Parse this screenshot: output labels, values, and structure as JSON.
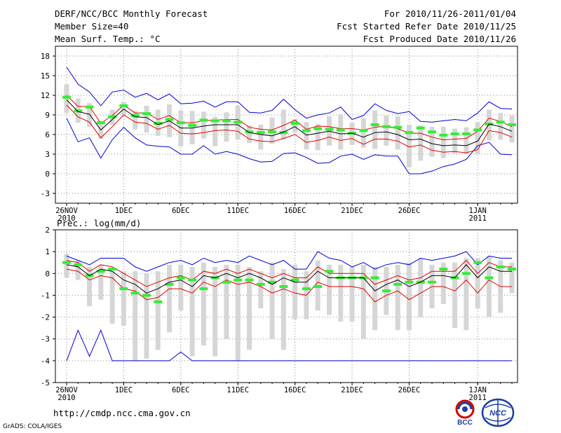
{
  "header": {
    "title": "DERF/NCC/BCC Monthly Forecast",
    "member_size": "Member Size=40",
    "variable": "Mean Surf. Temp.: °C",
    "period": "For 2010/11/26-2011/01/04",
    "started": "Fcst Started Refer Date 2010/11/25",
    "produced": "Fcst Produced Date 2010/11/26"
  },
  "footer": {
    "url": "http://cmdp.ncc.cma.gov.cn",
    "grads": "GrADS: COLA/IGES",
    "logo1_text": "BCC",
    "logo2_text": "NCC"
  },
  "colors": {
    "mean": "#000000",
    "std_band": "#e00000",
    "extreme": "#0000d0",
    "obs_box": "#33ee33",
    "spread_bar": "#d6d6d6",
    "grid": "#888888"
  },
  "chart_data": [
    {
      "type": "line",
      "title": "Mean Surf. Temp.: °C",
      "x_tick_labels": [
        "26NOV\n2010",
        "1DEC",
        "6DEC",
        "11DEC",
        "16DEC",
        "21DEC",
        "26DEC",
        "1JAN\n2011"
      ],
      "x_tick_days": [
        0,
        5,
        10,
        15,
        20,
        25,
        30,
        36
      ],
      "y_ticks": [
        -3,
        0,
        3,
        6,
        9,
        12,
        15,
        18
      ],
      "ylim": [
        -4.5,
        19.5
      ],
      "days": 40,
      "series": [
        {
          "name": "mean",
          "values": [
            11.3,
            9.5,
            9.1,
            6.7,
            8.3,
            9.9,
            8.7,
            8.6,
            7.5,
            8.1,
            7.0,
            7.0,
            7.3,
            7.5,
            7.5,
            7.5,
            6.3,
            6.0,
            5.8,
            6.4,
            7.2,
            5.9,
            6.2,
            6.5,
            6.1,
            6.2,
            5.6,
            6.3,
            6.4,
            6.0,
            5.2,
            5.3,
            4.6,
            4.3,
            4.4,
            4.3,
            5.0,
            7.6,
            7.2,
            6.5
          ]
        },
        {
          "name": "upper_std",
          "values": [
            12.0,
            10.3,
            10.3,
            7.7,
            8.9,
            10.5,
            9.3,
            9.3,
            8.3,
            8.9,
            7.8,
            7.8,
            8.1,
            8.2,
            8.3,
            8.3,
            7.1,
            6.8,
            6.7,
            7.4,
            8.2,
            6.8,
            7.3,
            7.2,
            6.9,
            6.9,
            6.7,
            7.1,
            7.3,
            6.9,
            6.2,
            6.2,
            5.6,
            5.2,
            5.3,
            5.4,
            6.5,
            8.5,
            8.0,
            7.2
          ]
        },
        {
          "name": "lower_std",
          "values": [
            10.5,
            8.7,
            7.9,
            5.5,
            7.2,
            9.0,
            7.9,
            7.7,
            6.8,
            7.4,
            6.2,
            6.1,
            6.3,
            6.6,
            6.7,
            6.5,
            5.3,
            5.0,
            4.9,
            5.4,
            6.0,
            4.8,
            5.1,
            5.6,
            5.1,
            5.4,
            4.5,
            5.3,
            5.3,
            5.0,
            4.1,
            4.4,
            3.6,
            3.3,
            3.4,
            3.2,
            3.7,
            6.6,
            6.3,
            5.6
          ]
        },
        {
          "name": "max",
          "values": [
            16.3,
            13.7,
            12.5,
            10.4,
            12.5,
            12.8,
            11.7,
            12.3,
            11.3,
            12.2,
            10.7,
            10.8,
            11.1,
            10.2,
            11.0,
            11.0,
            9.4,
            9.3,
            9.7,
            11.4,
            9.8,
            8.5,
            9.0,
            9.3,
            10.2,
            8.3,
            8.9,
            10.7,
            9.7,
            9.2,
            9.5,
            8.0,
            7.9,
            8.1,
            8.3,
            8.1,
            9.3,
            11.0,
            10.0,
            9.9
          ]
        },
        {
          "name": "min",
          "values": [
            8.5,
            4.9,
            5.5,
            2.4,
            5.2,
            7.1,
            5.5,
            4.4,
            4.2,
            4.1,
            3.0,
            3.0,
            4.3,
            3.0,
            3.4,
            3.0,
            2.3,
            1.8,
            1.9,
            3.1,
            3.2,
            2.5,
            1.6,
            1.7,
            2.7,
            3.0,
            2.2,
            2.9,
            2.7,
            2.7,
            0.0,
            0.0,
            0.4,
            1.1,
            1.5,
            2.2,
            4.3,
            4.8,
            3.0,
            2.9
          ]
        },
        {
          "name": "observed",
          "values": [
            11.7,
            9.6,
            10.2,
            7.8,
            8.7,
            10.4,
            8.9,
            9.2,
            7.7,
            8.3,
            7.8,
            7.4,
            8.2,
            8.1,
            8.1,
            7.9,
            6.4,
            6.3,
            6.4,
            6.3,
            7.7,
            6.6,
            6.9,
            6.8,
            6.7,
            6.2,
            6.6,
            7.5,
            7.2,
            7.1,
            6.3,
            7.0,
            6.4,
            5.9,
            6.1,
            6.1,
            6.7,
            7.6,
            7.9,
            7.5
          ]
        }
      ],
      "spread_min": [
        9.3,
        7.8,
        7.2,
        5.3,
        7.5,
        8.9,
        6.8,
        6.3,
        5.8,
        5.6,
        4.2,
        4.5,
        5.4,
        4.2,
        4.9,
        5.2,
        4.7,
        3.7,
        4.6,
        5.2,
        6.3,
        3.7,
        3.6,
        4.3,
        3.7,
        4.4,
        4.0,
        3.8,
        4.3,
        3.7,
        1.0,
        2.0,
        2.6,
        2.4,
        3.1,
        3.0,
        3.0,
        5.1,
        5.2,
        4.8
      ],
      "spread_max": [
        13.7,
        11.5,
        10.8,
        8.1,
        9.8,
        11.0,
        9.6,
        10.4,
        9.8,
        10.6,
        9.7,
        9.6,
        9.5,
        8.7,
        9.4,
        10.4,
        7.4,
        7.5,
        8.6,
        9.8,
        8.4,
        7.9,
        7.6,
        8.8,
        9.1,
        7.8,
        8.5,
        9.7,
        8.9,
        8.8,
        7.5,
        7.4,
        7.2,
        7.2,
        6.9,
        7.1,
        7.9,
        9.8,
        9.3,
        8.9
      ]
    },
    {
      "type": "line",
      "title": "Prec.: log(mm/d)",
      "x_tick_labels": [
        "26NOV\n2010",
        "1DEC",
        "6DEC",
        "11DEC",
        "16DEC",
        "21DEC",
        "26DEC",
        "1JAN\n2011"
      ],
      "x_tick_days": [
        0,
        5,
        10,
        15,
        20,
        25,
        30,
        36
      ],
      "y_ticks": [
        -5,
        -4,
        -3,
        -2,
        -1,
        0,
        1,
        2
      ],
      "ylim": [
        -5,
        2
      ],
      "days": 40,
      "series": [
        {
          "name": "mean",
          "values": [
            0.4,
            0.3,
            -0.1,
            0.2,
            0.1,
            -0.3,
            -0.5,
            -0.9,
            -0.7,
            -0.4,
            -0.3,
            -0.6,
            -0.1,
            -0.2,
            0.0,
            -0.2,
            0.0,
            -0.2,
            -0.5,
            -0.2,
            -0.4,
            -0.4,
            0.1,
            -0.2,
            -0.2,
            -0.2,
            -0.2,
            -0.8,
            -0.5,
            -0.3,
            -0.6,
            -0.4,
            -0.1,
            -0.1,
            -0.2,
            0.4,
            -0.2,
            0.3,
            0.1,
            0.1
          ]
        },
        {
          "name": "upper_std",
          "values": [
            0.6,
            0.5,
            0.1,
            0.4,
            0.3,
            0.0,
            -0.3,
            -0.6,
            -0.4,
            -0.2,
            -0.1,
            -0.3,
            0.1,
            0.0,
            0.2,
            0.0,
            0.2,
            0.0,
            -0.2,
            0.0,
            -0.2,
            -0.2,
            0.3,
            0.0,
            0.0,
            0.0,
            0.0,
            -0.5,
            -0.3,
            -0.1,
            -0.3,
            -0.2,
            0.1,
            0.1,
            0.1,
            0.6,
            0.0,
            0.5,
            0.3,
            0.3
          ]
        },
        {
          "name": "lower_std",
          "values": [
            0.2,
            0.1,
            -0.3,
            -0.1,
            -0.2,
            -0.7,
            -0.8,
            -1.2,
            -1.1,
            -0.7,
            -0.7,
            -0.9,
            -0.4,
            -0.6,
            -0.3,
            -0.5,
            -0.4,
            -0.6,
            -0.9,
            -0.7,
            -0.9,
            -1.0,
            -0.4,
            -0.6,
            -0.6,
            -0.6,
            -0.7,
            -1.3,
            -1.0,
            -0.8,
            -1.2,
            -0.9,
            -0.6,
            -0.6,
            -0.8,
            -0.3,
            -0.9,
            -0.3,
            -0.6,
            -0.6
          ]
        },
        {
          "name": "max",
          "values": [
            0.8,
            0.6,
            0.4,
            0.7,
            0.7,
            0.7,
            0.3,
            0.1,
            0.3,
            0.5,
            0.6,
            0.4,
            0.7,
            0.5,
            0.6,
            0.5,
            0.8,
            0.6,
            0.4,
            0.6,
            0.2,
            0.2,
            1.0,
            0.7,
            0.6,
            0.3,
            0.5,
            0.2,
            0.4,
            0.5,
            0.4,
            0.7,
            0.6,
            0.7,
            0.8,
            1.0,
            0.4,
            0.8,
            0.7,
            0.7
          ]
        },
        {
          "name": "min",
          "values": [
            -4.0,
            -2.6,
            -3.8,
            -2.6,
            -4.0,
            -4.0,
            -4.0,
            -4.0,
            -4.0,
            -4.0,
            -3.6,
            -4.0,
            -4.0,
            -4.0,
            -4.0,
            -4.0,
            -4.0,
            -4.0,
            -4.0,
            -4.0,
            -4.0,
            -4.0,
            -4.0,
            -4.0,
            -4.0,
            -4.0,
            -4.0,
            -4.0,
            -4.0,
            -4.0,
            -4.0,
            -4.0,
            -4.0,
            -4.0,
            -4.0,
            -4.0,
            -4.0,
            -4.0,
            -4.0,
            -4.0
          ]
        },
        {
          "name": "observed",
          "values": [
            0.5,
            0.4,
            -0.1,
            0.1,
            0.2,
            -0.7,
            -0.9,
            -1.0,
            -1.3,
            -0.5,
            -0.2,
            -0.3,
            -0.7,
            -0.2,
            -0.4,
            -0.3,
            -0.3,
            -0.5,
            -0.4,
            -0.6,
            -0.3,
            -0.7,
            -0.6,
            0.1,
            -0.2,
            -0.2,
            -0.2,
            -0.2,
            -0.8,
            -0.5,
            -0.4,
            -0.4,
            -0.4,
            0.2,
            -0.2,
            0.0,
            0.5,
            -0.2,
            0.3,
            0.2
          ]
        }
      ],
      "spread_min": [
        -0.2,
        -0.3,
        -1.5,
        -1.2,
        -2.3,
        -2.4,
        -4.0,
        -3.9,
        -3.5,
        -2.7,
        -1.7,
        -3.8,
        -3.3,
        -3.8,
        -3.0,
        -4.0,
        -3.5,
        -1.6,
        -3.0,
        -3.5,
        -2.1,
        -2.1,
        -1.7,
        -1.9,
        -2.2,
        -2.2,
        -3.0,
        -2.6,
        -1.9,
        -2.6,
        -2.6,
        -2.0,
        -1.6,
        -1.4,
        -2.5,
        -2.6,
        -1.6,
        -2.0,
        -1.8,
        -0.9
      ],
      "spread_max": [
        0.9,
        0.6,
        0.3,
        0.4,
        0.1,
        0.1,
        0.1,
        0.0,
        0.1,
        0.4,
        0.4,
        0.3,
        0.5,
        0.3,
        0.4,
        0.4,
        0.3,
        0.1,
        0.5,
        0.2,
        0.4,
        0.1,
        0.6,
        0.4,
        0.4,
        0.3,
        0.4,
        0.3,
        0.3,
        0.4,
        0.5,
        0.7,
        0.4,
        0.5,
        0.5,
        0.7,
        0.7,
        0.8,
        0.6,
        0.5
      ]
    }
  ]
}
